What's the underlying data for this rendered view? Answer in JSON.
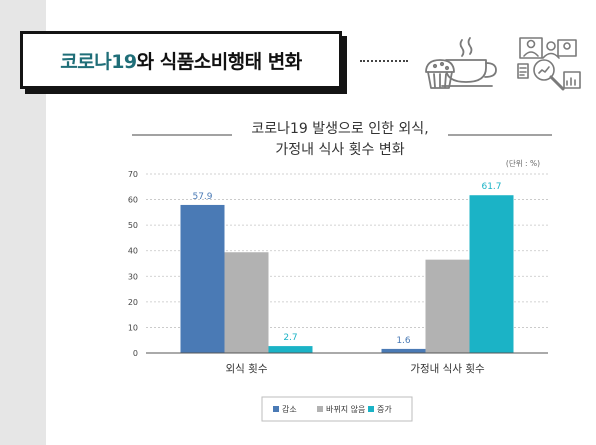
{
  "header": {
    "title_prefix": "코로나19",
    "title_suffix": "와 식품소비행태 변화"
  },
  "icons": [
    "coffee-and-muffin-icon",
    "analytics-people-icon"
  ],
  "chart_data": {
    "type": "bar",
    "title_line1": "코로나19 발생으로 인한 외식,",
    "title_line2": "가정내 식사 횟수 변화",
    "unit_label": "(단위 : %)",
    "categories": [
      "외식 횟수",
      "가정내 식사 횟수"
    ],
    "series": [
      {
        "name": "감소",
        "values": [
          57.9,
          1.6
        ],
        "color": "#4a7ab5",
        "labeled": true
      },
      {
        "name": "바뀌지 않음",
        "values": [
          39.4,
          36.5
        ],
        "color": "#b2b2b2",
        "labeled": false
      },
      {
        "name": "증가",
        "values": [
          2.7,
          61.7
        ],
        "color": "#1bb3c6",
        "labeled": true
      }
    ],
    "ylim": [
      0,
      70
    ],
    "yticks": [
      0,
      10,
      20,
      30,
      40,
      50,
      60,
      70
    ],
    "grid": true,
    "legend_position": "bottom"
  }
}
